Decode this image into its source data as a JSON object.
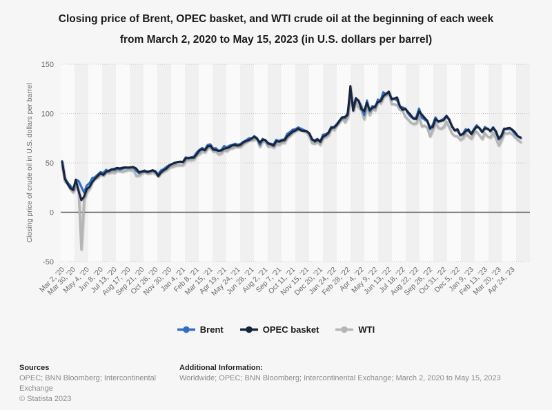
{
  "header": {
    "line1": "Closing price of Brent, OPEC basket, and WTI crude oil at the beginning of each week",
    "line2": "from March 2, 2020 to May 15, 2023 (in U.S. dollars per barrel)"
  },
  "chart_data": {
    "type": "line",
    "title": "Closing price of Brent, OPEC basket, and WTI crude oil at the beginning of each week from March 2, 2020 to May 15, 2023 (in U.S. dollars per barrel)",
    "ylabel": "Closing price of crude oil in U.S. dollars per barrel",
    "ylim": [
      -50,
      150
    ],
    "yticks": [
      150,
      100,
      50,
      0,
      -50
    ],
    "x_unit": "weekly, Mar 2 2020 - May 15 2023",
    "n_points": 168,
    "grid": "horizontal-dotted",
    "legend_position": "bottom",
    "x_tick_weeks": [
      0,
      4,
      9,
      14,
      19,
      24,
      29,
      34,
      39,
      44,
      49,
      54,
      59,
      64,
      69,
      74,
      79,
      84,
      89,
      94,
      99,
      104,
      109,
      114,
      119,
      124,
      129,
      134,
      139,
      144,
      149,
      154,
      159,
      164
    ],
    "x_tick_labels": [
      "Mar 2, '20",
      "Mar 30, '20",
      "May 4, '20",
      "Jun 8, '20",
      "Jul 13, '20",
      "Aug 17, '20",
      "Sep 21, '20",
      "Oct 26, '20",
      "Nov 30, '20",
      "Jan 4, '21",
      "Feb 8, '21",
      "Mar 15, '21",
      "Apr 19, '21",
      "May 24, '21",
      "Jun 28, '21",
      "Aug 2, '21",
      "Sep 7, '21",
      "Oct 11, '21",
      "Nov 15, '21",
      "Dec 20, '21",
      "Jan 24, '22",
      "Feb 28, '22",
      "Apr 4, '22",
      "May 9, '22",
      "Jun 13, '22",
      "Jul 18, '22",
      "Aug 22, '22",
      "Sep 26, '22",
      "Oct 31, '22",
      "Dec 5, '22",
      "Jan 9, '23",
      "Feb 13, '23",
      "Mar 20, '23",
      "Apr 24, '23"
    ],
    "series": [
      {
        "name": "Brent",
        "color": "#2f6ec5",
        "values": [
          51.9,
          34.4,
          30.0,
          27.0,
          22.8,
          33.1,
          31.7,
          25.6,
          20.0,
          27.2,
          29.6,
          34.8,
          35.5,
          38.3,
          40.8,
          39.7,
          43.1,
          41.7,
          43.1,
          42.7,
          44.3,
          43.4,
          44.2,
          45.0,
          45.4,
          45.1,
          45.3,
          42.0,
          39.6,
          41.4,
          42.4,
          41.3,
          41.7,
          42.6,
          40.5,
          39.0,
          42.4,
          43.8,
          46.0,
          47.6,
          48.8,
          50.3,
          50.9,
          51.1,
          51.1,
          55.7,
          54.8,
          55.9,
          56.4,
          60.6,
          63.3,
          65.2,
          63.7,
          68.2,
          68.9,
          64.6,
          65.0,
          62.2,
          63.3,
          67.1,
          65.9,
          67.6,
          68.3,
          69.5,
          68.5,
          69.3,
          71.5,
          72.9,
          75.0,
          74.7,
          77.2,
          75.2,
          68.6,
          74.5,
          72.9,
          69.0,
          69.5,
          68.8,
          73.4,
          72.2,
          73.5,
          73.9,
          79.5,
          81.3,
          83.7,
          84.3,
          86.0,
          84.7,
          83.4,
          82.1,
          79.7,
          73.4,
          73.1,
          74.4,
          71.5,
          78.6,
          79.0,
          80.9,
          86.5,
          86.3,
          89.3,
          92.7,
          96.5,
          95.4,
          101.0,
          123.2,
          106.9,
          115.6,
          112.5,
          107.5,
          98.5,
          113.2,
          102.3,
          107.6,
          105.9,
          114.2,
          113.4,
          121.7,
          119.5,
          122.3,
          114.1,
          115.1,
          113.5,
          107.1,
          106.3,
          105.2,
          100.0,
          96.7,
          95.1,
          96.5,
          105.1,
          95.7,
          94.0,
          92.0,
          84.1,
          88.9,
          96.2,
          91.6,
          93.3,
          94.8,
          97.9,
          93.1,
          87.5,
          83.2,
          82.7,
          78.0,
          79.8,
          84.3,
          82.1,
          79.7,
          84.5,
          88.2,
          84.9,
          81.0,
          86.6,
          84.1,
          82.5,
          86.2,
          80.8,
          73.8,
          78.1,
          84.9,
          84.2,
          84.8,
          82.7,
          79.3,
          77.0,
          75.2
        ]
      },
      {
        "name": "OPEC basket",
        "color": "#17243d",
        "values": [
          51.0,
          33.9,
          28.7,
          24.5,
          22.6,
          33.0,
          21.4,
          12.4,
          15.8,
          23.4,
          25.9,
          30.7,
          34.0,
          37.0,
          39.5,
          37.8,
          40.9,
          42.0,
          43.4,
          43.9,
          44.9,
          44.5,
          45.1,
          45.5,
          45.2,
          45.6,
          45.8,
          44.3,
          40.6,
          41.3,
          41.6,
          40.8,
          41.7,
          42.5,
          41.5,
          36.5,
          40.3,
          42.6,
          44.3,
          47.4,
          48.9,
          49.8,
          50.9,
          51.3,
          50.9,
          54.6,
          55.0,
          55.3,
          55.4,
          58.8,
          62.5,
          63.9,
          62.8,
          66.8,
          67.3,
          63.6,
          63.0,
          62.3,
          62.6,
          64.5,
          65.0,
          66.0,
          67.8,
          68.0,
          67.5,
          68.3,
          70.9,
          72.2,
          73.0,
          74.8,
          76.5,
          74.4,
          70.8,
          73.5,
          73.3,
          70.2,
          68.9,
          67.4,
          72.0,
          71.5,
          72.5,
          73.1,
          76.9,
          79.4,
          81.7,
          82.9,
          84.7,
          82.8,
          82.5,
          82.3,
          80.2,
          74.3,
          71.7,
          73.8,
          71.5,
          76.5,
          78.0,
          80.5,
          85.4,
          85.9,
          88.4,
          92.8,
          95.9,
          96.7,
          98.5,
          127.9,
          103.0,
          115.5,
          113.0,
          104.5,
          102.5,
          110.9,
          103.4,
          105.7,
          107.5,
          111.6,
          112.5,
          117.6,
          120.1,
          122.1,
          114.8,
          115.2,
          116.4,
          107.6,
          103.7,
          104.8,
          101.5,
          98.4,
          94.7,
          94.5,
          102.4,
          99.1,
          95.8,
          92.7,
          85.4,
          86.4,
          94.5,
          92.0,
          92.5,
          93.4,
          97.4,
          94.2,
          86.7,
          82.7,
          84.2,
          78.1,
          79.1,
          82.2,
          83.9,
          79.1,
          83.3,
          86.8,
          85.4,
          81.4,
          85.0,
          84.8,
          82.0,
          85.5,
          82.1,
          74.5,
          77.1,
          84.2,
          85.0,
          85.5,
          83.6,
          81.0,
          76.9,
          75.9
        ]
      },
      {
        "name": "WTI",
        "color": "#b5b5b5",
        "values": [
          46.8,
          31.1,
          28.7,
          23.4,
          20.1,
          26.1,
          22.4,
          -37.6,
          12.8,
          20.4,
          24.1,
          31.8,
          34.3,
          35.4,
          38.2,
          37.1,
          40.7,
          39.7,
          40.6,
          40.1,
          41.9,
          41.6,
          41.0,
          41.9,
          42.9,
          42.6,
          42.6,
          36.8,
          37.3,
          39.3,
          40.6,
          39.2,
          39.4,
          40.8,
          38.6,
          36.8,
          40.3,
          41.3,
          43.1,
          45.3,
          45.8,
          47.0,
          47.7,
          47.6,
          47.6,
          52.3,
          53.0,
          52.8,
          53.6,
          58.0,
          59.0,
          61.7,
          60.6,
          65.1,
          65.4,
          61.6,
          61.6,
          58.7,
          59.7,
          63.4,
          61.9,
          64.5,
          64.9,
          66.3,
          66.1,
          66.3,
          69.2,
          71.0,
          73.1,
          72.9,
          73.4,
          74.1,
          66.4,
          72.0,
          71.3,
          66.5,
          67.3,
          65.6,
          69.2,
          68.3,
          70.5,
          70.3,
          75.5,
          77.6,
          80.5,
          82.4,
          83.8,
          84.1,
          81.9,
          80.9,
          76.8,
          70.0,
          69.5,
          71.3,
          68.2,
          75.6,
          76.1,
          78.2,
          85.7,
          83.3,
          88.2,
          91.3,
          95.5,
          91.1,
          95.7,
          119.4,
          103.0,
          112.1,
          106.0,
          103.3,
          94.3,
          108.2,
          98.5,
          105.2,
          103.1,
          114.2,
          110.3,
          117.0,
          118.5,
          120.9,
          109.6,
          109.6,
          108.4,
          104.0,
          102.6,
          96.7,
          93.9,
          90.8,
          89.4,
          90.2,
          97.0,
          86.9,
          87.8,
          85.7,
          76.7,
          83.6,
          91.1,
          85.5,
          84.6,
          86.5,
          91.8,
          85.9,
          79.7,
          77.2,
          77.0,
          73.2,
          75.2,
          79.5,
          77.0,
          74.6,
          80.1,
          81.6,
          77.9,
          74.1,
          80.1,
          76.6,
          75.7,
          80.5,
          74.8,
          67.6,
          72.8,
          80.4,
          79.7,
          80.8,
          78.8,
          75.7,
          73.2,
          71.1
        ]
      }
    ],
    "colors": {
      "background": "#f6f6f6",
      "band_light": "#fafafa",
      "band_dark": "#f0f0f1",
      "gridline": "#c9c9c9",
      "zero_line": "#595959",
      "axis_text": "#6b6b6b"
    }
  },
  "footer": {
    "sources_label": "Sources",
    "sources_text": "OPEC; BNN Bloomberg; Intercontinental Exchange",
    "copyright": "© Statista 2023",
    "additional_label": "Additional Information:",
    "additional_text": "Worldwide; OPEC; BNN Bloomberg; Intercontinental Exchange; March 2, 2020 to May 15, 2023"
  }
}
